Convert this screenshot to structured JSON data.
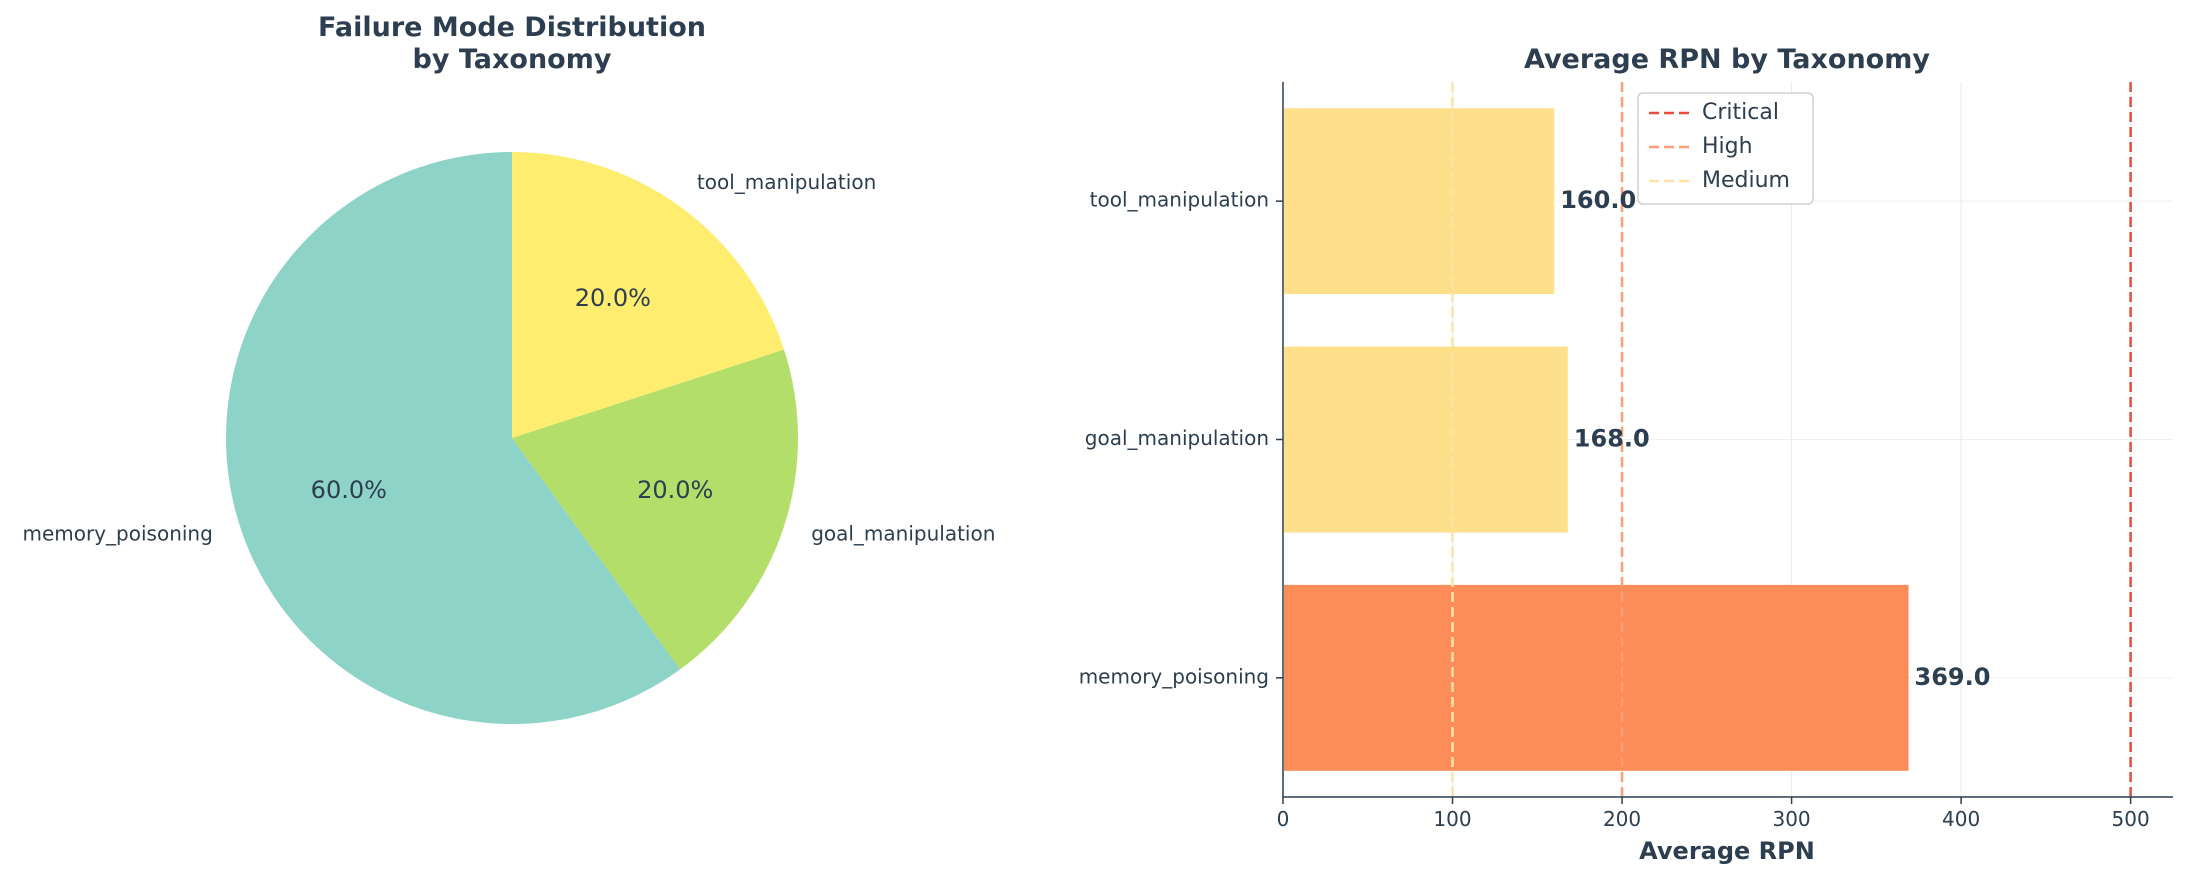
{
  "chart_data": [
    {
      "type": "pie",
      "title_lines": [
        "Failure Mode Distribution",
        "by Taxonomy"
      ],
      "slices": [
        {
          "label": "tool_manipulation",
          "value": 20.0,
          "pct_label": "20.0%",
          "color": "#ffed6f"
        },
        {
          "label": "goal_manipulation",
          "value": 20.0,
          "pct_label": "20.0%",
          "color": "#b3de69"
        },
        {
          "label": "memory_poisoning",
          "value": 60.0,
          "pct_label": "60.0%",
          "color": "#8dd3c7"
        }
      ],
      "start_angle": "top",
      "direction": "clockwise"
    },
    {
      "type": "bar",
      "orientation": "horizontal",
      "title": "Average RPN by Taxonomy",
      "xlabel": "Average RPN",
      "ylabel": "",
      "xlim": [
        0,
        525
      ],
      "xticks": [
        0,
        100,
        200,
        300,
        400,
        500
      ],
      "grid": true,
      "categories": [
        "memory_poisoning",
        "goal_manipulation",
        "tool_manipulation"
      ],
      "values": [
        369.0,
        168.0,
        160.0
      ],
      "value_labels": [
        "369.0",
        "168.0",
        "160.0"
      ],
      "bar_colors": [
        "#fc8d59",
        "#fee08b",
        "#fee08b"
      ],
      "thresholds": [
        {
          "name": "Critical",
          "value": 500,
          "color": "#e74c3c"
        },
        {
          "name": "High",
          "value": 200,
          "color": "#fc9e76"
        },
        {
          "name": "Medium",
          "value": 100,
          "color": "#fee3a6"
        }
      ],
      "legend_position": "top-center"
    }
  ]
}
